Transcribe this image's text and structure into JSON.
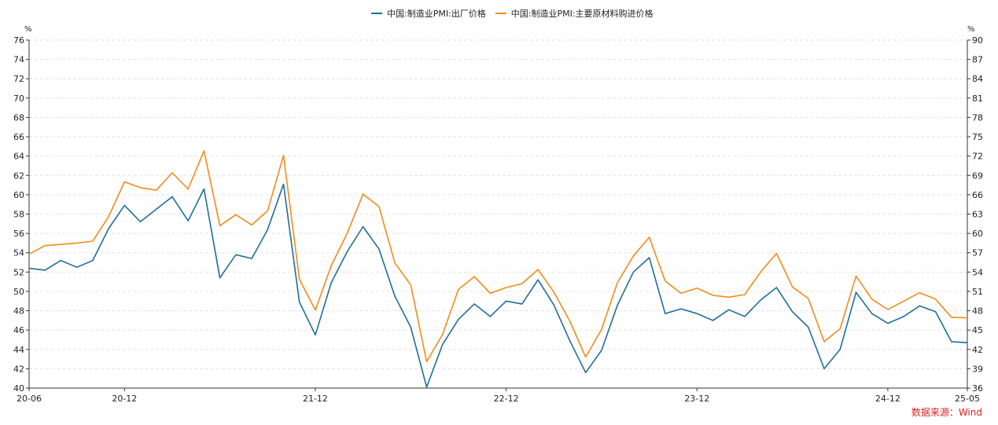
{
  "chart_data": {
    "type": "line",
    "x": [
      "20-06",
      "20-07",
      "20-08",
      "20-09",
      "20-10",
      "20-11",
      "20-12",
      "21-01",
      "21-02",
      "21-03",
      "21-04",
      "21-05",
      "21-06",
      "21-07",
      "21-08",
      "21-09",
      "21-10",
      "21-11",
      "21-12",
      "22-01",
      "22-02",
      "22-03",
      "22-04",
      "22-05",
      "22-06",
      "22-07",
      "22-08",
      "22-09",
      "22-10",
      "22-11",
      "22-12",
      "23-01",
      "23-02",
      "23-03",
      "23-04",
      "23-05",
      "23-06",
      "23-07",
      "23-08",
      "23-09",
      "23-10",
      "23-11",
      "23-12",
      "24-01",
      "24-02",
      "24-03",
      "24-04",
      "24-05",
      "24-06",
      "24-07",
      "24-08",
      "24-09",
      "24-10",
      "24-11",
      "24-12",
      "25-01",
      "25-02",
      "25-03",
      "25-04",
      "25-05"
    ],
    "x_tick_labels": [
      "20-06",
      "20-12",
      "21-12",
      "22-12",
      "23-12",
      "24-12",
      "25-05"
    ],
    "left_axis": {
      "unit": "%",
      "ylim": [
        40,
        76
      ],
      "ticks": [
        "40",
        "42",
        "44",
        "46",
        "48",
        "50",
        "52",
        "54",
        "56",
        "58",
        "60",
        "62",
        "64",
        "66",
        "68",
        "70",
        "72",
        "74",
        "76"
      ]
    },
    "right_axis": {
      "unit": "%",
      "ylim": [
        36,
        90
      ],
      "ticks": [
        "36",
        "39",
        "42",
        "45",
        "48",
        "51",
        "54",
        "57",
        "60",
        "63",
        "66",
        "69",
        "72",
        "75",
        "78",
        "81",
        "84",
        "87",
        "90"
      ]
    },
    "series": [
      {
        "name": "中国:制造业PMI:出厂价格",
        "axis": "left",
        "color": "#1f6e99",
        "values": [
          52.4,
          52.2,
          53.2,
          52.5,
          53.2,
          56.5,
          58.9,
          57.2,
          58.5,
          59.8,
          57.3,
          60.6,
          51.4,
          53.8,
          53.4,
          56.4,
          61.1,
          48.9,
          45.5,
          50.9,
          54.1,
          56.7,
          54.4,
          49.5,
          46.3,
          40.1,
          44.5,
          47.1,
          48.7,
          47.4,
          49.0,
          48.7,
          51.2,
          48.6,
          44.9,
          41.6,
          43.9,
          48.6,
          52.0,
          53.5,
          47.7,
          48.2,
          47.7,
          47.0,
          48.1,
          47.4,
          49.1,
          50.4,
          47.9,
          46.3,
          42.0,
          44.0,
          49.9,
          47.7,
          46.7,
          47.4,
          48.5,
          47.9,
          44.8,
          44.7
        ]
      },
      {
        "name": "中国:制造业PMI:主要原材料购进价格",
        "axis": "right",
        "color": "#f28b1c",
        "values": [
          56.8,
          58.1,
          58.3,
          58.5,
          58.8,
          62.6,
          68.0,
          67.1,
          66.7,
          69.4,
          66.9,
          72.8,
          61.2,
          62.9,
          61.3,
          63.5,
          72.1,
          52.9,
          48.1,
          55.0,
          60.0,
          66.1,
          64.2,
          55.4,
          52.0,
          40.1,
          44.3,
          51.3,
          53.3,
          50.7,
          51.6,
          52.2,
          54.4,
          50.9,
          46.4,
          40.8,
          45.1,
          52.4,
          56.5,
          59.4,
          52.6,
          50.7,
          51.5,
          50.4,
          50.1,
          50.5,
          54.0,
          56.9,
          51.7,
          49.9,
          43.2,
          45.2,
          53.4,
          49.8,
          48.2,
          49.5,
          50.8,
          49.8,
          47.0,
          46.9
        ]
      }
    ],
    "grid": true,
    "legend": "top-center",
    "source_note": "数据来源：Wind"
  }
}
